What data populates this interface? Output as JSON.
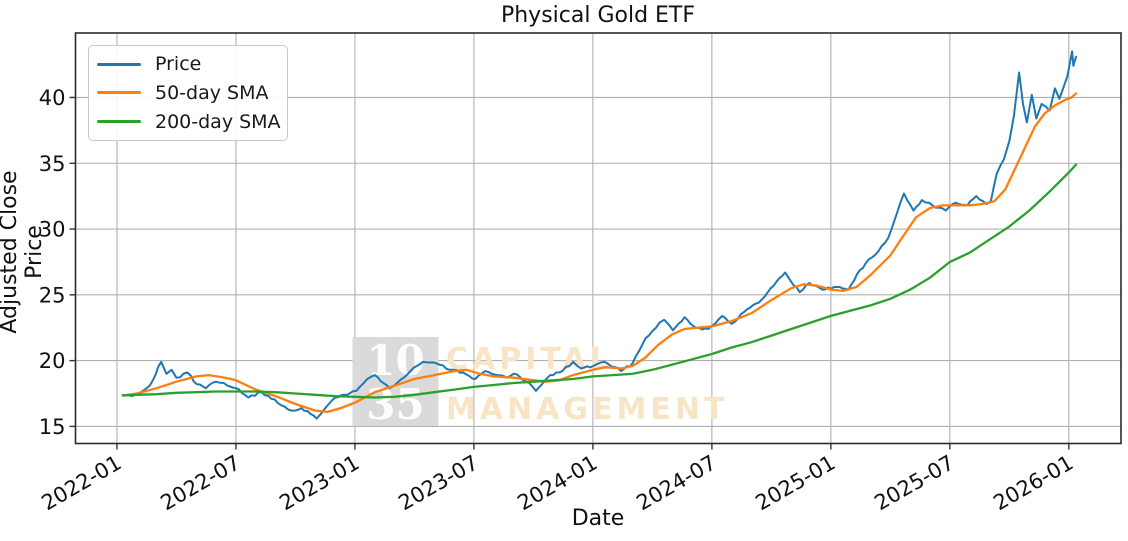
{
  "chart_data": {
    "type": "line",
    "title": "Physical Gold ETF",
    "xlabel": "Date",
    "ylabel": "Adjusted Close Price",
    "x_tick_labels": [
      "2022-01",
      "2022-07",
      "2023-01",
      "2023-07",
      "2024-01",
      "2024-07",
      "2025-01",
      "2025-07",
      "2026-01"
    ],
    "y_ticks": [
      15,
      20,
      25,
      30,
      35,
      40
    ],
    "ylim": [
      13.7,
      44.9
    ],
    "xlim_months_from_2022_01": [
      -2.09,
      50.63
    ],
    "grid": true,
    "legend_position": "upper left",
    "series": [
      {
        "name": "Price",
        "color": "#1f77b4",
        "points": [
          [
            "2022-01-10",
            17.4
          ],
          [
            "2022-01-24",
            17.3
          ],
          [
            "2022-02-07",
            17.6
          ],
          [
            "2022-02-21",
            18.1
          ],
          [
            "2022-03-08",
            19.9
          ],
          [
            "2022-03-16",
            19.0
          ],
          [
            "2022-03-24",
            19.3
          ],
          [
            "2022-04-01",
            18.7
          ],
          [
            "2022-04-18",
            19.1
          ],
          [
            "2022-05-02",
            18.2
          ],
          [
            "2022-05-16",
            17.9
          ],
          [
            "2022-06-01",
            18.4
          ],
          [
            "2022-06-13",
            18.3
          ],
          [
            "2022-07-01",
            17.9
          ],
          [
            "2022-07-20",
            17.2
          ],
          [
            "2022-08-10",
            17.6
          ],
          [
            "2022-08-25",
            17.1
          ],
          [
            "2022-09-15",
            16.5
          ],
          [
            "2022-09-26",
            16.2
          ],
          [
            "2022-10-10",
            16.4
          ],
          [
            "2022-11-03",
            15.6
          ],
          [
            "2022-11-15",
            16.3
          ],
          [
            "2022-12-01",
            17.2
          ],
          [
            "2022-12-15",
            17.4
          ],
          [
            "2023-01-03",
            17.7
          ],
          [
            "2023-01-20",
            18.6
          ],
          [
            "2023-02-01",
            18.9
          ],
          [
            "2023-02-24",
            17.9
          ],
          [
            "2023-03-15",
            18.7
          ],
          [
            "2023-04-05",
            19.6
          ],
          [
            "2023-04-14",
            19.9
          ],
          [
            "2023-05-04",
            19.8
          ],
          [
            "2023-05-25",
            19.3
          ],
          [
            "2023-06-15",
            19.1
          ],
          [
            "2023-07-03",
            18.6
          ],
          [
            "2023-07-18",
            19.2
          ],
          [
            "2023-08-07",
            18.9
          ],
          [
            "2023-08-21",
            18.7
          ],
          [
            "2023-09-01",
            19.0
          ],
          [
            "2023-09-25",
            18.3
          ],
          [
            "2023-10-05",
            17.7
          ],
          [
            "2023-10-27",
            18.9
          ],
          [
            "2023-11-15",
            19.2
          ],
          [
            "2023-12-01",
            19.9
          ],
          [
            "2023-12-13",
            19.4
          ],
          [
            "2024-01-02",
            19.6
          ],
          [
            "2024-01-19",
            19.9
          ],
          [
            "2024-02-14",
            19.2
          ],
          [
            "2024-03-01",
            19.8
          ],
          [
            "2024-03-21",
            21.7
          ],
          [
            "2024-04-12",
            22.9
          ],
          [
            "2024-04-19",
            23.1
          ],
          [
            "2024-05-02",
            22.3
          ],
          [
            "2024-05-20",
            23.3
          ],
          [
            "2024-06-07",
            22.5
          ],
          [
            "2024-06-26",
            22.4
          ],
          [
            "2024-07-17",
            23.4
          ],
          [
            "2024-08-01",
            22.8
          ],
          [
            "2024-08-20",
            23.7
          ],
          [
            "2024-09-12",
            24.4
          ],
          [
            "2024-09-26",
            25.2
          ],
          [
            "2024-10-22",
            26.7
          ],
          [
            "2024-11-14",
            25.2
          ],
          [
            "2024-11-29",
            25.9
          ],
          [
            "2024-12-18",
            25.4
          ],
          [
            "2025-01-10",
            25.6
          ],
          [
            "2025-01-28",
            25.4
          ],
          [
            "2025-02-11",
            26.6
          ],
          [
            "2025-02-24",
            27.4
          ],
          [
            "2025-03-13",
            28.3
          ],
          [
            "2025-03-28",
            29.3
          ],
          [
            "2025-04-11",
            31.2
          ],
          [
            "2025-04-22",
            32.7
          ],
          [
            "2025-05-06",
            31.4
          ],
          [
            "2025-05-19",
            32.2
          ],
          [
            "2025-06-05",
            31.8
          ],
          [
            "2025-06-25",
            31.4
          ],
          [
            "2025-07-10",
            32.0
          ],
          [
            "2025-07-28",
            31.8
          ],
          [
            "2025-08-11",
            32.5
          ],
          [
            "2025-08-27",
            31.9
          ],
          [
            "2025-09-03",
            32.1
          ],
          [
            "2025-09-12",
            34.2
          ],
          [
            "2025-09-23",
            35.3
          ],
          [
            "2025-10-01",
            36.7
          ],
          [
            "2025-10-08",
            38.6
          ],
          [
            "2025-10-16",
            41.9
          ],
          [
            "2025-10-22",
            39.5
          ],
          [
            "2025-10-28",
            38.1
          ],
          [
            "2025-11-05",
            40.2
          ],
          [
            "2025-11-12",
            38.4
          ],
          [
            "2025-11-20",
            39.5
          ],
          [
            "2025-12-02",
            39.0
          ],
          [
            "2025-12-10",
            40.7
          ],
          [
            "2025-12-17",
            39.9
          ],
          [
            "2025-12-29",
            41.6
          ],
          [
            "2026-01-06",
            43.5
          ],
          [
            "2026-01-08",
            42.4
          ],
          [
            "2026-01-12",
            43.1
          ]
        ]
      },
      {
        "name": "50-day SMA",
        "color": "#ff7f0e",
        "points": [
          [
            "2022-01-10",
            17.35
          ],
          [
            "2022-02-01",
            17.5
          ],
          [
            "2022-03-01",
            17.9
          ],
          [
            "2022-04-01",
            18.4
          ],
          [
            "2022-05-01",
            18.8
          ],
          [
            "2022-05-20",
            18.9
          ],
          [
            "2022-06-15",
            18.7
          ],
          [
            "2022-07-01",
            18.5
          ],
          [
            "2022-08-01",
            17.8
          ],
          [
            "2022-09-01",
            17.3
          ],
          [
            "2022-10-01",
            16.7
          ],
          [
            "2022-11-01",
            16.2
          ],
          [
            "2022-11-20",
            16.1
          ],
          [
            "2022-12-10",
            16.4
          ],
          [
            "2023-01-01",
            16.8
          ],
          [
            "2023-02-01",
            17.6
          ],
          [
            "2023-03-01",
            18.1
          ],
          [
            "2023-04-01",
            18.6
          ],
          [
            "2023-05-01",
            18.9
          ],
          [
            "2023-06-01",
            19.2
          ],
          [
            "2023-06-20",
            19.3
          ],
          [
            "2023-07-10",
            19.0
          ],
          [
            "2023-08-01",
            18.8
          ],
          [
            "2023-09-01",
            18.7
          ],
          [
            "2023-10-01",
            18.5
          ],
          [
            "2023-10-20",
            18.4
          ],
          [
            "2023-11-10",
            18.5
          ],
          [
            "2023-12-01",
            18.9
          ],
          [
            "2024-01-01",
            19.3
          ],
          [
            "2024-01-20",
            19.5
          ],
          [
            "2024-02-15",
            19.4
          ],
          [
            "2024-03-01",
            19.6
          ],
          [
            "2024-03-20",
            20.2
          ],
          [
            "2024-04-10",
            21.2
          ],
          [
            "2024-05-01",
            22.0
          ],
          [
            "2024-05-20",
            22.4
          ],
          [
            "2024-06-10",
            22.5
          ],
          [
            "2024-07-01",
            22.6
          ],
          [
            "2024-08-01",
            23.0
          ],
          [
            "2024-09-01",
            23.6
          ],
          [
            "2024-10-01",
            24.6
          ],
          [
            "2024-11-01",
            25.5
          ],
          [
            "2024-11-20",
            25.8
          ],
          [
            "2024-12-10",
            25.7
          ],
          [
            "2025-01-01",
            25.4
          ],
          [
            "2025-01-20",
            25.3
          ],
          [
            "2025-02-10",
            25.6
          ],
          [
            "2025-03-01",
            26.5
          ],
          [
            "2025-04-01",
            28.0
          ],
          [
            "2025-04-20",
            29.4
          ],
          [
            "2025-05-10",
            30.9
          ],
          [
            "2025-06-01",
            31.6
          ],
          [
            "2025-06-20",
            31.8
          ],
          [
            "2025-07-10",
            31.8
          ],
          [
            "2025-08-01",
            31.8
          ],
          [
            "2025-08-20",
            31.9
          ],
          [
            "2025-09-08",
            32.1
          ],
          [
            "2025-09-25",
            33.0
          ],
          [
            "2025-10-10",
            34.6
          ],
          [
            "2025-10-25",
            36.2
          ],
          [
            "2025-11-10",
            37.8
          ],
          [
            "2025-11-25",
            38.8
          ],
          [
            "2025-12-10",
            39.4
          ],
          [
            "2025-12-25",
            39.8
          ],
          [
            "2026-01-05",
            40.0
          ],
          [
            "2026-01-12",
            40.3
          ]
        ]
      },
      {
        "name": "200-day SMA",
        "color": "#2ca02c",
        "points": [
          [
            "2022-01-10",
            17.35
          ],
          [
            "2022-02-01",
            17.4
          ],
          [
            "2022-03-01",
            17.45
          ],
          [
            "2022-04-01",
            17.55
          ],
          [
            "2022-05-01",
            17.6
          ],
          [
            "2022-06-01",
            17.65
          ],
          [
            "2022-07-01",
            17.65
          ],
          [
            "2022-08-01",
            17.65
          ],
          [
            "2022-09-01",
            17.6
          ],
          [
            "2022-10-01",
            17.5
          ],
          [
            "2022-11-01",
            17.4
          ],
          [
            "2022-12-01",
            17.3
          ],
          [
            "2023-01-01",
            17.25
          ],
          [
            "2023-02-01",
            17.2
          ],
          [
            "2023-03-01",
            17.25
          ],
          [
            "2023-04-01",
            17.4
          ],
          [
            "2023-05-01",
            17.6
          ],
          [
            "2023-06-01",
            17.8
          ],
          [
            "2023-07-01",
            18.0
          ],
          [
            "2023-08-01",
            18.15
          ],
          [
            "2023-09-01",
            18.3
          ],
          [
            "2023-10-01",
            18.4
          ],
          [
            "2023-11-01",
            18.5
          ],
          [
            "2023-12-01",
            18.6
          ],
          [
            "2024-01-01",
            18.8
          ],
          [
            "2024-02-01",
            18.9
          ],
          [
            "2024-03-01",
            19.0
          ],
          [
            "2024-04-01",
            19.3
          ],
          [
            "2024-05-01",
            19.7
          ],
          [
            "2024-06-01",
            20.1
          ],
          [
            "2024-07-01",
            20.5
          ],
          [
            "2024-08-01",
            21.0
          ],
          [
            "2024-09-01",
            21.4
          ],
          [
            "2024-10-01",
            21.9
          ],
          [
            "2024-11-01",
            22.4
          ],
          [
            "2024-12-01",
            22.9
          ],
          [
            "2025-01-01",
            23.4
          ],
          [
            "2025-02-01",
            23.8
          ],
          [
            "2025-03-01",
            24.2
          ],
          [
            "2025-04-01",
            24.7
          ],
          [
            "2025-05-01",
            25.4
          ],
          [
            "2025-06-01",
            26.3
          ],
          [
            "2025-07-01",
            27.5
          ],
          [
            "2025-08-01",
            28.2
          ],
          [
            "2025-09-01",
            29.2
          ],
          [
            "2025-10-01",
            30.2
          ],
          [
            "2025-11-01",
            31.4
          ],
          [
            "2025-12-01",
            32.8
          ],
          [
            "2026-01-01",
            34.3
          ],
          [
            "2026-01-12",
            34.9
          ]
        ]
      }
    ]
  },
  "watermark": {
    "box_line1": "10",
    "box_line2": "35",
    "line1": "CAPITAL",
    "line2": "MANAGEMENT"
  },
  "colors": {
    "grid": "#b0b0b0",
    "spine": "#2b2b2b",
    "tick_text": "#111111",
    "watermark_box": "#dadada",
    "watermark_digits": "#fdfdfd",
    "watermark_text": "#f8e4c6"
  }
}
